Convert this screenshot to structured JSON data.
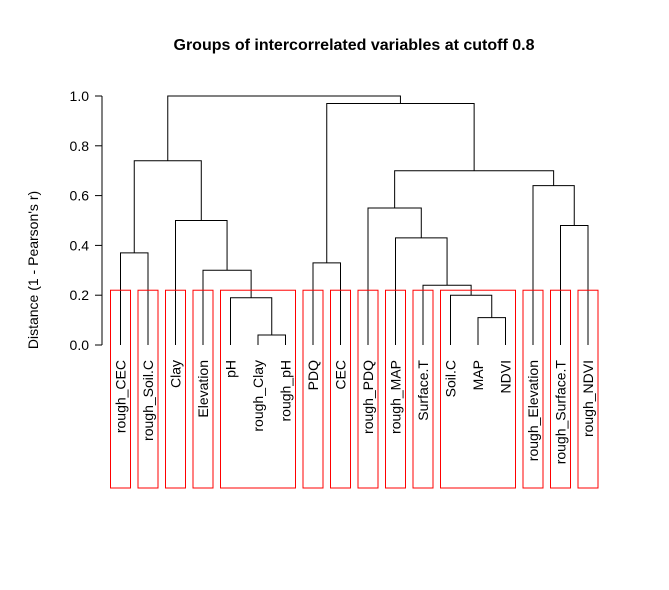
{
  "chart_data": {
    "type": "dendrogram",
    "title": "Groups of intercorrelated variables at cutoff 0.8",
    "ylabel": "Distance (1 - Pearson's r)",
    "ylim": [
      0,
      1
    ],
    "yticks": [
      "0.0",
      "0.2",
      "0.4",
      "0.6",
      "0.8",
      "1.0"
    ],
    "cutoff_height": 0.22,
    "leaves": [
      "rough_CEC",
      "rough_Soil.C",
      "Clay",
      "Elevation",
      "pH",
      "rough_Clay",
      "rough_pH",
      "PDQ",
      "CEC",
      "rough_PDQ",
      "rough_MAP",
      "Surface.T",
      "Soil.C",
      "MAP",
      "NDVI",
      "rough_Elevation",
      "rough_Surface.T",
      "rough_NDVI"
    ],
    "merges": [
      {
        "left": "L5",
        "right": "L6",
        "height": 0.04
      },
      {
        "left": "L13",
        "right": "L14",
        "height": 0.11
      },
      {
        "left": "L12",
        "right": "M1",
        "height": 0.2
      },
      {
        "left": "L4",
        "right": "M0",
        "height": 0.19
      },
      {
        "left": "L11",
        "right": "M2",
        "height": 0.24
      },
      {
        "left": "L3",
        "right": "M3",
        "height": 0.3
      },
      {
        "left": "L7",
        "right": "L8",
        "height": 0.33
      },
      {
        "left": "L0",
        "right": "L1",
        "height": 0.37
      },
      {
        "left": "L10",
        "right": "M4",
        "height": 0.43
      },
      {
        "left": "L16",
        "right": "L17",
        "height": 0.48
      },
      {
        "left": "L2",
        "right": "M5",
        "height": 0.5
      },
      {
        "left": "L9",
        "right": "M8",
        "height": 0.55
      },
      {
        "left": "L15",
        "right": "M9",
        "height": 0.64
      },
      {
        "left": "M11",
        "right": "M12",
        "height": 0.7
      },
      {
        "left": "M7",
        "right": "M10",
        "height": 0.74
      },
      {
        "left": "M6",
        "right": "M13",
        "height": 0.97
      },
      {
        "left": "M14",
        "right": "M15",
        "height": 1.0
      }
    ],
    "groups": [
      [
        0
      ],
      [
        1
      ],
      [
        2
      ],
      [
        3
      ],
      [
        4,
        5,
        6
      ],
      [
        7
      ],
      [
        8
      ],
      [
        9
      ],
      [
        10
      ],
      [
        11
      ],
      [
        12,
        13,
        14
      ],
      [
        15
      ],
      [
        16
      ],
      [
        17
      ]
    ],
    "group_box_color": "#ff0000"
  }
}
